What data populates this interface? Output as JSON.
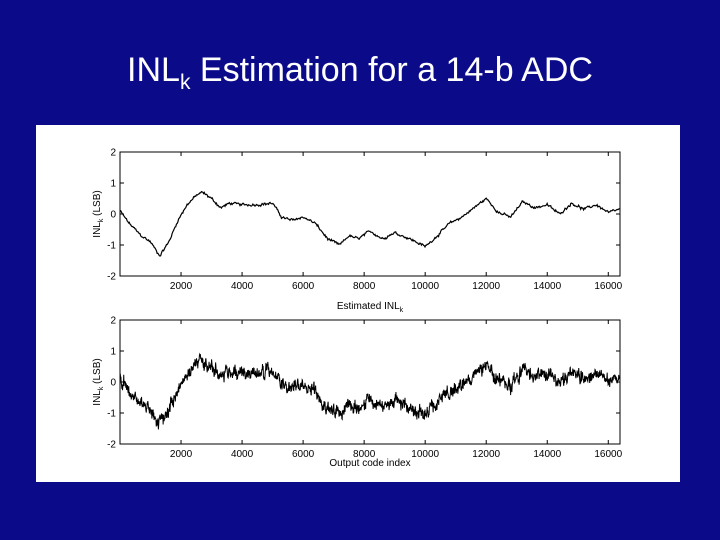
{
  "slide": {
    "title_main": "INL",
    "title_sub": "k",
    "title_rest": " Estimation for a 14-b ADC"
  },
  "colors": {
    "background": "#0b0b8a",
    "title": "#ffffff",
    "panel": "#ffffff",
    "trace": "#000000"
  },
  "chart_data": [
    {
      "type": "line",
      "title": "",
      "xlabel": "Estimated INL",
      "xlabel_sub": "k",
      "ylabel": "INL",
      "ylabel_sub": "k",
      "ylabel_rest": " (LSB)",
      "xlim": [
        0,
        16384
      ],
      "ylim": [
        -2,
        2
      ],
      "xticks": [
        "2000",
        "4000",
        "6000",
        "8000",
        "10000",
        "12000",
        "14000",
        "16000"
      ],
      "yticks": [
        "2",
        "1",
        "0",
        "-1",
        "-2"
      ],
      "noise": 0.05,
      "x": [
        0,
        300,
        700,
        1000,
        1300,
        1600,
        1900,
        2200,
        2500,
        2700,
        3000,
        3300,
        3600,
        4000,
        4500,
        5000,
        5300,
        5600,
        6000,
        6400,
        6800,
        7200,
        7500,
        7800,
        8200,
        8600,
        9000,
        9500,
        10000,
        10400,
        10800,
        11200,
        11600,
        12000,
        12400,
        12800,
        13200,
        13600,
        14000,
        14400,
        14800,
        15200,
        15600,
        16000,
        16383
      ],
      "series": [
        {
          "values": [
            0.1,
            -0.3,
            -0.7,
            -0.9,
            -1.35,
            -0.9,
            -0.2,
            0.3,
            0.6,
            0.7,
            0.5,
            0.2,
            0.35,
            0.3,
            0.3,
            0.35,
            -0.1,
            -0.2,
            -0.1,
            -0.3,
            -0.8,
            -1.0,
            -0.7,
            -0.8,
            -0.55,
            -0.8,
            -0.6,
            -0.8,
            -1.05,
            -0.7,
            -0.3,
            -0.1,
            0.2,
            0.5,
            0.05,
            -0.1,
            0.4,
            0.2,
            0.3,
            0.0,
            0.35,
            0.15,
            0.3,
            0.05,
            0.15
          ]
        }
      ]
    },
    {
      "type": "line",
      "title": "",
      "xlabel": "Output code index",
      "ylabel": "INL",
      "ylabel_sub": "k",
      "ylabel_rest": " (LSB)",
      "xlim": [
        0,
        16384
      ],
      "ylim": [
        -2,
        2
      ],
      "xticks": [
        "2000",
        "4000",
        "6000",
        "8000",
        "10000",
        "12000",
        "14000",
        "16000"
      ],
      "yticks": [
        "2",
        "1",
        "0",
        "-1",
        "-2"
      ],
      "noise": 0.25,
      "x": [
        0,
        300,
        700,
        1000,
        1300,
        1600,
        1900,
        2200,
        2500,
        2700,
        3000,
        3300,
        3600,
        4000,
        4500,
        5000,
        5300,
        5600,
        6000,
        6400,
        6800,
        7200,
        7500,
        7800,
        8200,
        8600,
        9000,
        9500,
        10000,
        10400,
        10800,
        11200,
        11600,
        12000,
        12400,
        12800,
        13200,
        13600,
        14000,
        14400,
        14800,
        15200,
        15600,
        16000,
        16383
      ],
      "series": [
        {
          "values": [
            0.1,
            -0.3,
            -0.7,
            -0.9,
            -1.35,
            -0.9,
            -0.2,
            0.3,
            0.6,
            0.7,
            0.5,
            0.2,
            0.35,
            0.3,
            0.3,
            0.35,
            -0.1,
            -0.2,
            -0.1,
            -0.3,
            -0.8,
            -1.0,
            -0.7,
            -0.8,
            -0.55,
            -0.8,
            -0.6,
            -0.8,
            -1.05,
            -0.7,
            -0.3,
            -0.1,
            0.2,
            0.5,
            0.05,
            -0.1,
            0.4,
            0.2,
            0.3,
            0.0,
            0.35,
            0.15,
            0.3,
            0.05,
            0.15
          ]
        }
      ]
    }
  ]
}
